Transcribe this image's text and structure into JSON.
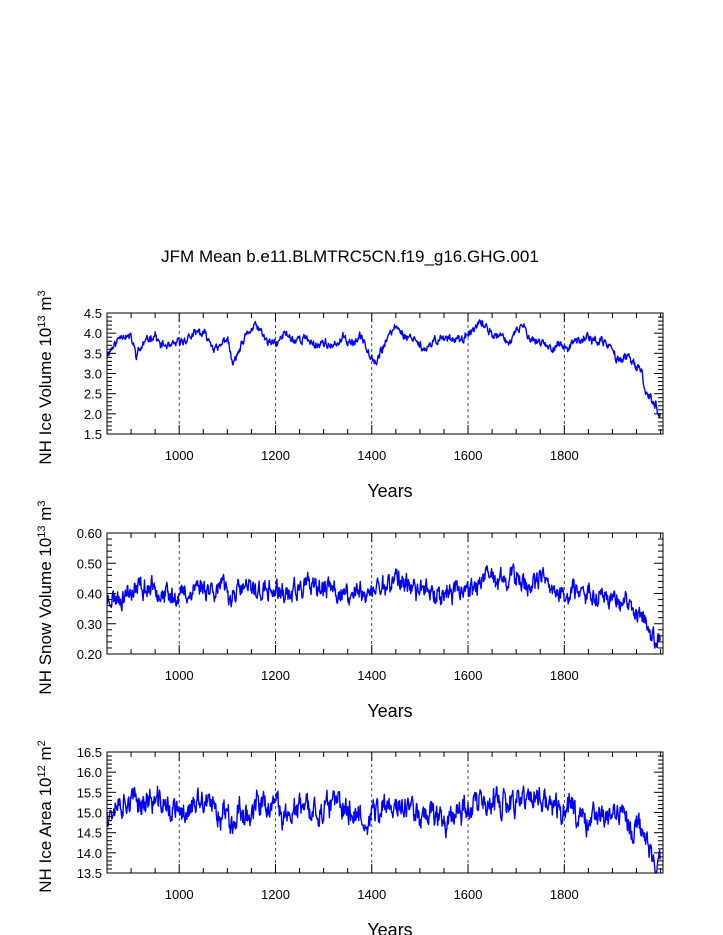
{
  "title": "JFM Mean b.e11.BLMTRC5CN.f19_g16.GHG.001",
  "colors": {
    "series": "#0000ff",
    "axis": "#000000",
    "grid": "#000000"
  },
  "chart_data": [
    {
      "type": "line",
      "name": "ice-volume",
      "ylabel_main": "NH Ice Volume 10",
      "ylabel_exp": "13",
      "ylabel_unit": " m",
      "ylabel_unit_exp": "3",
      "xlabel": "Years",
      "xlim": [
        850,
        2005
      ],
      "ylim": [
        1.5,
        4.5
      ],
      "xticks": [
        1000,
        1200,
        1400,
        1600,
        1800
      ],
      "xtick_labels": [
        "1000",
        "1200",
        "1400",
        "1600",
        "1800"
      ],
      "yticks": [
        1.5,
        2.0,
        2.5,
        3.0,
        3.5,
        4.0,
        4.5
      ],
      "ytick_labels": [
        "1.5",
        "2.0",
        "2.5",
        "3.0",
        "3.5",
        "4.0",
        "4.5"
      ],
      "grid": "vertical-dashed",
      "anchors": [
        [
          850,
          3.5
        ],
        [
          870,
          3.8
        ],
        [
          880,
          4.0
        ],
        [
          900,
          3.9
        ],
        [
          910,
          3.5
        ],
        [
          930,
          3.8
        ],
        [
          950,
          4.0
        ],
        [
          960,
          3.7
        ],
        [
          980,
          3.65
        ],
        [
          1000,
          3.75
        ],
        [
          1020,
          3.9
        ],
        [
          1040,
          4.0
        ],
        [
          1060,
          3.9
        ],
        [
          1080,
          3.6
        ],
        [
          1100,
          3.9
        ],
        [
          1110,
          3.2
        ],
        [
          1120,
          3.4
        ],
        [
          1140,
          3.9
        ],
        [
          1160,
          4.2
        ],
        [
          1180,
          3.8
        ],
        [
          1200,
          3.7
        ],
        [
          1220,
          4.0
        ],
        [
          1240,
          3.8
        ],
        [
          1260,
          3.9
        ],
        [
          1280,
          3.7
        ],
        [
          1300,
          3.8
        ],
        [
          1320,
          3.6
        ],
        [
          1340,
          3.9
        ],
        [
          1360,
          3.8
        ],
        [
          1380,
          3.9
        ],
        [
          1395,
          3.5
        ],
        [
          1410,
          3.3
        ],
        [
          1430,
          3.8
        ],
        [
          1450,
          4.2
        ],
        [
          1470,
          3.9
        ],
        [
          1490,
          3.9
        ],
        [
          1510,
          3.5
        ],
        [
          1530,
          3.8
        ],
        [
          1550,
          3.9
        ],
        [
          1570,
          3.9
        ],
        [
          1590,
          3.8
        ],
        [
          1610,
          4.1
        ],
        [
          1630,
          4.2
        ],
        [
          1650,
          4.0
        ],
        [
          1670,
          3.9
        ],
        [
          1690,
          3.8
        ],
        [
          1710,
          4.2
        ],
        [
          1730,
          3.9
        ],
        [
          1750,
          3.8
        ],
        [
          1770,
          3.6
        ],
        [
          1790,
          3.7
        ],
        [
          1810,
          3.6
        ],
        [
          1830,
          3.8
        ],
        [
          1850,
          3.9
        ],
        [
          1870,
          3.8
        ],
        [
          1890,
          3.7
        ],
        [
          1910,
          3.4
        ],
        [
          1930,
          3.4
        ],
        [
          1950,
          3.1
        ],
        [
          1960,
          3.0
        ],
        [
          1970,
          2.5
        ],
        [
          1985,
          2.3
        ],
        [
          1998,
          2.0
        ]
      ],
      "noise": 0.14,
      "seed": 11
    },
    {
      "type": "line",
      "name": "snow-volume",
      "ylabel_main": "NH Snow Volume 10",
      "ylabel_exp": "13",
      "ylabel_unit": " m",
      "ylabel_unit_exp": "3",
      "xlabel": "Years",
      "xlim": [
        850,
        2005
      ],
      "ylim": [
        0.2,
        0.6
      ],
      "xticks": [
        1000,
        1200,
        1400,
        1600,
        1800
      ],
      "xtick_labels": [
        "1000",
        "1200",
        "1400",
        "1600",
        "1800"
      ],
      "yticks": [
        0.2,
        0.3,
        0.4,
        0.5,
        0.6
      ],
      "ytick_labels": [
        "0.20",
        "0.30",
        "0.40",
        "0.50",
        "0.60"
      ],
      "grid": "vertical-dashed",
      "anchors": [
        [
          850,
          0.38
        ],
        [
          900,
          0.4
        ],
        [
          950,
          0.42
        ],
        [
          1000,
          0.39
        ],
        [
          1050,
          0.43
        ],
        [
          1100,
          0.41
        ],
        [
          1150,
          0.41
        ],
        [
          1200,
          0.4
        ],
        [
          1250,
          0.42
        ],
        [
          1300,
          0.41
        ],
        [
          1350,
          0.4
        ],
        [
          1400,
          0.4
        ],
        [
          1450,
          0.45
        ],
        [
          1500,
          0.41
        ],
        [
          1550,
          0.41
        ],
        [
          1600,
          0.42
        ],
        [
          1650,
          0.45
        ],
        [
          1700,
          0.44
        ],
        [
          1750,
          0.44
        ],
        [
          1800,
          0.41
        ],
        [
          1850,
          0.4
        ],
        [
          1900,
          0.39
        ],
        [
          1940,
          0.35
        ],
        [
          1970,
          0.3
        ],
        [
          1998,
          0.24
        ]
      ],
      "noise": 0.045,
      "seed": 23
    },
    {
      "type": "line",
      "name": "ice-area",
      "ylabel_main": "NH Ice Area 10",
      "ylabel_exp": "12",
      "ylabel_unit": " m",
      "ylabel_unit_exp": "2",
      "xlabel": "Years",
      "xlim": [
        850,
        2005
      ],
      "ylim": [
        13.5,
        16.5
      ],
      "xticks": [
        1000,
        1200,
        1400,
        1600,
        1800
      ],
      "xtick_labels": [
        "1000",
        "1200",
        "1400",
        "1600",
        "1800"
      ],
      "yticks": [
        13.5,
        14.0,
        14.5,
        15.0,
        15.5,
        16.0,
        16.5
      ],
      "ytick_labels": [
        "13.5",
        "14.0",
        "14.5",
        "15.0",
        "15.5",
        "16.0",
        "16.5"
      ],
      "grid": "vertical-dashed",
      "anchors": [
        [
          850,
          15.1
        ],
        [
          900,
          15.2
        ],
        [
          950,
          15.3
        ],
        [
          1000,
          15.0
        ],
        [
          1050,
          15.1
        ],
        [
          1100,
          15.0
        ],
        [
          1150,
          15.0
        ],
        [
          1200,
          15.0
        ],
        [
          1250,
          15.1
        ],
        [
          1300,
          15.0
        ],
        [
          1350,
          15.1
        ],
        [
          1400,
          14.9
        ],
        [
          1450,
          15.3
        ],
        [
          1500,
          15.0
        ],
        [
          1550,
          15.0
        ],
        [
          1600,
          15.3
        ],
        [
          1650,
          15.2
        ],
        [
          1700,
          15.2
        ],
        [
          1720,
          15.5
        ],
        [
          1750,
          15.2
        ],
        [
          1800,
          15.1
        ],
        [
          1850,
          15.0
        ],
        [
          1900,
          15.0
        ],
        [
          1940,
          14.8
        ],
        [
          1960,
          14.6
        ],
        [
          1975,
          14.3
        ],
        [
          1985,
          13.8
        ],
        [
          1998,
          14.0
        ]
      ],
      "noise": 0.42,
      "seed": 37
    }
  ]
}
